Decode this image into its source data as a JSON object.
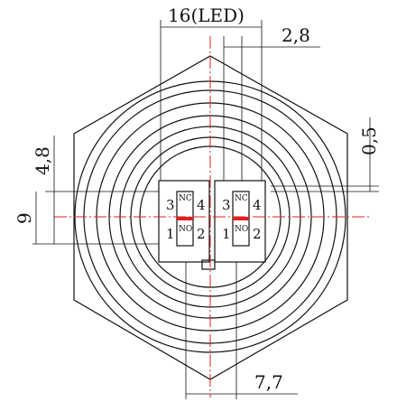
{
  "dimensions": {
    "top_width": "16(LED)",
    "top_gap": "2,8",
    "right_gap": "0,5",
    "left_upper": "4,8",
    "left_lower": "9",
    "bottom_width": "7,7"
  },
  "switches": [
    {
      "labels": [
        "3",
        "NC",
        "4",
        "1",
        "NO",
        "2"
      ]
    },
    {
      "labels": [
        "3",
        "NC",
        "4",
        "1",
        "NO",
        "2"
      ]
    }
  ]
}
